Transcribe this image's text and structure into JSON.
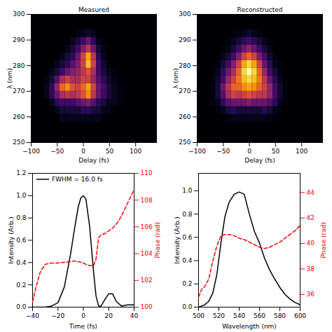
{
  "chart_data": [
    {
      "type": "heatmap",
      "title": "Measured",
      "x_label": "Delay (fs)",
      "y_label": "λ (nm)",
      "xlim": [
        -100,
        140
      ],
      "xticks": [
        -100,
        -50,
        0,
        50,
        100
      ],
      "ylim": [
        250,
        300
      ],
      "yticks": [
        250,
        260,
        270,
        280,
        290,
        300
      ],
      "zlim": [
        0,
        1
      ],
      "xbins": [
        -75,
        -65,
        -55,
        -45,
        -35,
        -25,
        -15,
        -5,
        5,
        15,
        25,
        35,
        45,
        55,
        65,
        75,
        85
      ],
      "ybins": [
        258,
        261,
        264,
        267,
        270,
        273,
        276,
        279,
        282,
        285,
        288,
        291,
        294
      ],
      "values": [
        [
          0,
          0,
          0,
          0.05,
          0.05,
          0.05,
          0.05,
          0.05,
          0.05,
          0.05,
          0.05,
          0,
          0,
          0,
          0,
          0
        ],
        [
          0,
          0,
          0.05,
          0.1,
          0.1,
          0.1,
          0.1,
          0.15,
          0.15,
          0.1,
          0.1,
          0.05,
          0.05,
          0,
          0,
          0
        ],
        [
          0,
          0.05,
          0.15,
          0.2,
          0.2,
          0.2,
          0.25,
          0.3,
          0.35,
          0.25,
          0.15,
          0.1,
          0.05,
          0.05,
          0.03,
          0
        ],
        [
          0.05,
          0.15,
          0.3,
          0.45,
          0.5,
          0.45,
          0.5,
          0.6,
          0.75,
          0.5,
          0.3,
          0.2,
          0.1,
          0.05,
          0.03,
          0.02
        ],
        [
          0.05,
          0.15,
          0.4,
          0.65,
          0.75,
          0.6,
          0.55,
          0.65,
          0.8,
          0.55,
          0.3,
          0.2,
          0.1,
          0.05,
          0.03,
          0.02
        ],
        [
          0.03,
          0.1,
          0.25,
          0.45,
          0.55,
          0.45,
          0.45,
          0.55,
          0.55,
          0.4,
          0.25,
          0.15,
          0.08,
          0.04,
          0.02,
          0
        ],
        [
          0,
          0.05,
          0.1,
          0.2,
          0.3,
          0.35,
          0.4,
          0.5,
          0.6,
          0.45,
          0.2,
          0.1,
          0.05,
          0.02,
          0,
          0
        ],
        [
          0,
          0,
          0.05,
          0.1,
          0.15,
          0.25,
          0.35,
          0.55,
          0.85,
          0.55,
          0.2,
          0.08,
          0.03,
          0,
          0,
          0
        ],
        [
          0,
          0,
          0,
          0.05,
          0.1,
          0.15,
          0.3,
          0.55,
          0.8,
          0.5,
          0.15,
          0.05,
          0,
          0,
          0,
          0
        ],
        [
          0,
          0,
          0,
          0,
          0.05,
          0.1,
          0.2,
          0.35,
          0.5,
          0.3,
          0.1,
          0.03,
          0,
          0,
          0,
          0
        ],
        [
          0,
          0,
          0,
          0,
          0,
          0.05,
          0.1,
          0.2,
          0.3,
          0.15,
          0.05,
          0,
          0,
          0,
          0,
          0
        ],
        [
          0,
          0,
          0,
          0,
          0,
          0,
          0.03,
          0.05,
          0.08,
          0.05,
          0,
          0,
          0,
          0,
          0,
          0
        ]
      ]
    },
    {
      "type": "heatmap",
      "title": "Reconstructed",
      "x_label": "Delay (fs)",
      "y_label": "λ (nm)",
      "xlim": [
        -100,
        140
      ],
      "xticks": [
        -100,
        -50,
        0,
        50,
        100
      ],
      "ylim": [
        250,
        300
      ],
      "yticks": [
        250,
        260,
        270,
        280,
        290,
        300
      ],
      "zlim": [
        0,
        1
      ],
      "xbins": [
        -75,
        -65,
        -55,
        -45,
        -35,
        -25,
        -15,
        -5,
        5,
        15,
        25,
        35,
        45,
        55,
        65,
        75,
        85
      ],
      "ybins": [
        258,
        261,
        264,
        267,
        270,
        273,
        276,
        279,
        282,
        285,
        288,
        291,
        294
      ],
      "values": [
        [
          0,
          0,
          0,
          0.03,
          0.05,
          0.05,
          0.05,
          0.05,
          0.05,
          0.05,
          0.05,
          0.03,
          0,
          0,
          0,
          0
        ],
        [
          0,
          0.03,
          0.05,
          0.1,
          0.15,
          0.1,
          0.1,
          0.1,
          0.1,
          0.1,
          0.15,
          0.1,
          0.05,
          0.03,
          0,
          0
        ],
        [
          0.03,
          0.05,
          0.15,
          0.25,
          0.3,
          0.3,
          0.3,
          0.35,
          0.3,
          0.3,
          0.3,
          0.25,
          0.15,
          0.05,
          0.03,
          0
        ],
        [
          0.03,
          0.1,
          0.25,
          0.45,
          0.55,
          0.5,
          0.55,
          0.6,
          0.55,
          0.5,
          0.5,
          0.4,
          0.2,
          0.08,
          0.03,
          0
        ],
        [
          0.03,
          0.1,
          0.3,
          0.5,
          0.65,
          0.65,
          0.75,
          0.8,
          0.75,
          0.65,
          0.55,
          0.4,
          0.2,
          0.08,
          0.03,
          0
        ],
        [
          0.02,
          0.08,
          0.2,
          0.4,
          0.55,
          0.7,
          0.85,
          0.9,
          0.85,
          0.7,
          0.5,
          0.3,
          0.15,
          0.05,
          0.02,
          0
        ],
        [
          0,
          0.05,
          0.15,
          0.3,
          0.45,
          0.65,
          0.9,
          1.0,
          0.9,
          0.65,
          0.4,
          0.2,
          0.1,
          0.03,
          0,
          0
        ],
        [
          0,
          0.03,
          0.1,
          0.2,
          0.35,
          0.55,
          0.8,
          0.9,
          0.8,
          0.55,
          0.3,
          0.15,
          0.05,
          0.02,
          0,
          0
        ],
        [
          0,
          0,
          0.05,
          0.1,
          0.2,
          0.35,
          0.55,
          0.65,
          0.55,
          0.35,
          0.2,
          0.08,
          0.03,
          0,
          0,
          0
        ],
        [
          0,
          0,
          0.02,
          0.05,
          0.1,
          0.2,
          0.3,
          0.4,
          0.3,
          0.2,
          0.1,
          0.05,
          0,
          0,
          0,
          0
        ],
        [
          0,
          0,
          0,
          0.02,
          0.05,
          0.1,
          0.15,
          0.2,
          0.15,
          0.1,
          0.05,
          0.02,
          0,
          0,
          0,
          0
        ],
        [
          0,
          0,
          0,
          0,
          0,
          0.03,
          0.05,
          0.08,
          0.05,
          0.03,
          0,
          0,
          0,
          0,
          0,
          0
        ]
      ]
    },
    {
      "type": "line",
      "x_label": "Time (fs)",
      "y_label": "Intensity (Arb.)",
      "y2_label": "Phase (rad)",
      "xlim": [
        -40,
        40
      ],
      "xticks": [
        -40,
        -20,
        0,
        20,
        40
      ],
      "ylim": [
        0,
        1.2
      ],
      "yticks": [
        {
          "value": 0,
          "label": "0.0"
        },
        {
          "value": 0.2,
          "label": "0.2"
        },
        {
          "value": 0.4,
          "label": "0.4"
        },
        {
          "value": 0.6,
          "label": "0.6"
        },
        {
          "value": 0.8,
          "label": "0.8"
        },
        {
          "value": 1.0,
          "label": "1.0"
        },
        {
          "value": 1.2,
          "label": "1.2"
        }
      ],
      "y2lim": [
        100,
        110
      ],
      "y2ticks": [
        100,
        102,
        104,
        106,
        108,
        110
      ],
      "legend": "top-left",
      "x": [
        -40,
        -37,
        -34,
        -30,
        -25,
        -20,
        -15,
        -10,
        -7,
        -4,
        -2,
        0,
        2,
        5,
        8,
        10,
        12,
        14,
        17,
        20,
        23,
        26,
        30,
        35,
        40
      ],
      "series": [
        {
          "name": "FWHM = 16.0 fs",
          "color": "black",
          "line_style": "solid",
          "values": [
            0,
            0,
            0,
            0,
            0.01,
            0.04,
            0.18,
            0.48,
            0.7,
            0.9,
            0.98,
            1.0,
            0.97,
            0.72,
            0.32,
            0.1,
            0.01,
            0.01,
            0.07,
            0.12,
            0.12,
            0.05,
            0.01,
            0.02,
            0.02
          ]
        },
        {
          "color": "red",
          "line_style": "dashed",
          "axis": "y2",
          "values": [
            100.4,
            101.6,
            102.6,
            103.2,
            103.3,
            103.3,
            103.35,
            103.4,
            103.45,
            103.4,
            103.35,
            103.3,
            103.2,
            103.1,
            103.1,
            103.6,
            105.2,
            105.4,
            105.5,
            105.7,
            105.9,
            106.2,
            106.8,
            107.8,
            108.8
          ]
        }
      ]
    },
    {
      "type": "line",
      "x_label": "Wavelength (nm)",
      "y_label": "Intensity (Arb.)",
      "y2_label": "Phase (rad)",
      "xlim": [
        500,
        600
      ],
      "xticks": [
        500,
        520,
        540,
        560,
        580,
        600
      ],
      "ylim": [
        0,
        1.15
      ],
      "yticks": [
        {
          "value": 0,
          "label": "0.0"
        },
        {
          "value": 0.2,
          "label": "0.2"
        },
        {
          "value": 0.4,
          "label": "0.4"
        },
        {
          "value": 0.6,
          "label": "0.6"
        },
        {
          "value": 0.8,
          "label": "0.8"
        },
        {
          "value": 1.0,
          "label": "1.0"
        }
      ],
      "y2lim": [
        35,
        45.5
      ],
      "y2ticks": [
        36,
        38,
        40,
        42,
        44
      ],
      "x": [
        500,
        503,
        506,
        510,
        514,
        518,
        522,
        526,
        530,
        535,
        540,
        545,
        550,
        555,
        560,
        565,
        570,
        575,
        580,
        585,
        590,
        595,
        600
      ],
      "series": [
        {
          "color": "black",
          "line_style": "solid",
          "values": [
            0,
            0.01,
            0.02,
            0.05,
            0.12,
            0.28,
            0.55,
            0.78,
            0.9,
            0.97,
            0.99,
            0.97,
            0.8,
            0.65,
            0.55,
            0.42,
            0.32,
            0.24,
            0.17,
            0.11,
            0.07,
            0.04,
            0.02
          ]
        },
        {
          "color": "red",
          "line_style": "dashed",
          "axis": "y2",
          "values": [
            35.8,
            36.4,
            36.6,
            37.2,
            38.6,
            39.8,
            40.6,
            40.7,
            40.7,
            40.6,
            40.4,
            40.3,
            40.1,
            39.9,
            39.7,
            39.6,
            39.7,
            39.9,
            40.1,
            40.4,
            40.7,
            41.0,
            41.4
          ]
        }
      ]
    }
  ]
}
